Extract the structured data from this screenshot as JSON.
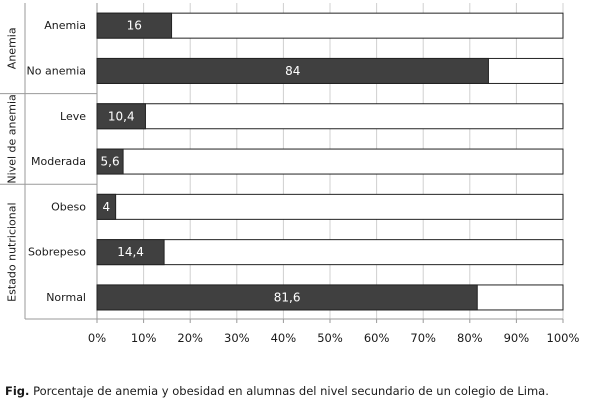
{
  "chart_data": {
    "type": "bar",
    "orientation": "horizontal",
    "stacked_to": 100,
    "groups": [
      {
        "label": "Anemia",
        "categories": [
          "Anemia",
          "No anemia"
        ],
        "values": [
          16,
          84
        ],
        "value_labels": [
          "16",
          "84"
        ]
      },
      {
        "label": "Nivel de anemia",
        "categories": [
          "Leve",
          "Moderada"
        ],
        "values": [
          10.4,
          5.6
        ],
        "value_labels": [
          "10,4",
          "5,6"
        ]
      },
      {
        "label": "Estado nutricional",
        "categories": [
          "Obeso",
          "Sobrepeso",
          "Normal"
        ],
        "values": [
          4,
          14.4,
          81.6
        ],
        "value_labels": [
          "4",
          "14,4",
          "81,6"
        ]
      }
    ],
    "xlim": [
      0,
      100
    ],
    "xticks": [
      "0%",
      "10%",
      "20%",
      "30%",
      "40%",
      "50%",
      "60%",
      "70%",
      "80%",
      "90%",
      "100%"
    ],
    "grid": true,
    "colors": {
      "filled": "#404040",
      "remainder": "#ffffff",
      "outline": "#222222"
    }
  },
  "caption": {
    "prefix": "Fig.",
    "text": "Porcentaje de anemia y obesidad en alumnas del nivel secundario de un colegio de Lima."
  }
}
